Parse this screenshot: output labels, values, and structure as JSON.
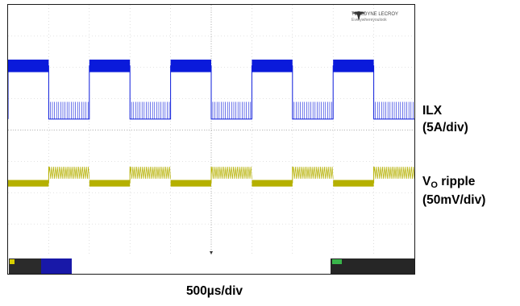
{
  "chart_data": {
    "type": "line",
    "xlabel": "500µs/div",
    "x_range_div": [
      0,
      10
    ],
    "y_range_div": [
      -4,
      4
    ],
    "grid": true,
    "period_div": 2.0,
    "duty_high": 0.5,
    "series": [
      {
        "name": "ILX",
        "label_line2": "(5A/div)",
        "color": "#0a1adb",
        "level_high_div": 2.05,
        "level_low_div": 0.35,
        "ripple_high_div": 0.4,
        "spike_low_div": 0.55,
        "phase_div": 0.0
      },
      {
        "name_main": "V",
        "name_sub": "O",
        "name_rest": " ripple",
        "label_line2": "(50mV/div)",
        "color": "#b5b000",
        "level_a_div": -1.7,
        "level_b_div": -1.45,
        "ripple_div": 0.35,
        "phase_div": 0.0
      }
    ]
  },
  "branding": {
    "line1": "TELEDYNE LECROY",
    "line2": "Everywhereyoulook"
  },
  "colors": {
    "grid": "#c8c8c8",
    "axis": "#7a7a7a",
    "ch1_tag": "#d8d000",
    "ch2_tag": "#1818a8",
    "timebase_tag": "#39b54a"
  }
}
